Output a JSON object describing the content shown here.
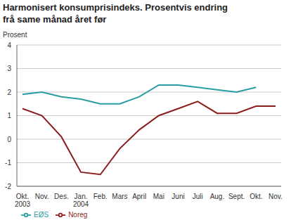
{
  "chart_data": {
    "type": "line",
    "title": "Harmonisert konsumprisindeks. Prosentvis endring frå same månad året før",
    "y_label": "Prosent",
    "categories": [
      "Okt. 2003",
      "Nov.",
      "Des.",
      "Jan. 2004",
      "Feb.",
      "Mars",
      "April",
      "Mai",
      "Juni",
      "Juli",
      "Aug.",
      "Sept.",
      "Okt.",
      "Nov."
    ],
    "series": [
      {
        "name": "EØS",
        "color": "#2a9ca3",
        "values": [
          1.9,
          2.0,
          1.8,
          1.7,
          1.5,
          1.5,
          1.8,
          2.3,
          2.3,
          2.2,
          2.1,
          2.0,
          2.2,
          null
        ]
      },
      {
        "name": "Noreg",
        "color": "#8c1d1d",
        "values": [
          1.3,
          1.0,
          0.1,
          -1.4,
          -1.5,
          -0.4,
          0.4,
          1.0,
          1.3,
          1.6,
          1.1,
          1.1,
          1.4,
          1.4
        ]
      }
    ],
    "ylim": [
      -2,
      4
    ],
    "yticks": [
      -2,
      -1,
      0,
      1,
      2,
      3,
      4
    ],
    "grid": true,
    "legend": "bottom"
  }
}
